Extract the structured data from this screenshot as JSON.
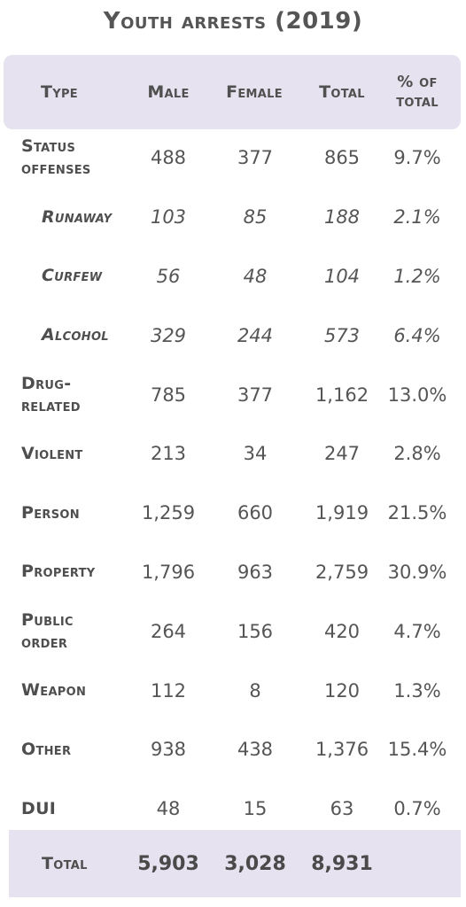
{
  "title": "Youth arrests (2019)",
  "columns": {
    "type": "Type",
    "male": "Male",
    "female": "Female",
    "total": "Total",
    "pct_line1": "% of",
    "pct_line2": "total"
  },
  "rows": [
    {
      "type_l1": "Status",
      "type_l2": "offenses",
      "male": "488",
      "female": "377",
      "total": "865",
      "pct": "9.7%"
    },
    {
      "type_l1": "Runaway",
      "type_l2": "",
      "male": "103",
      "female": "85",
      "total": "188",
      "pct": "2.1%"
    },
    {
      "type_l1": "Curfew",
      "type_l2": "",
      "male": "56",
      "female": "48",
      "total": "104",
      "pct": "1.2%"
    },
    {
      "type_l1": "Alcohol",
      "type_l2": "",
      "male": "329",
      "female": "244",
      "total": "573",
      "pct": "6.4%"
    },
    {
      "type_l1": "Drug-",
      "type_l2": "related",
      "male": "785",
      "female": "377",
      "total": "1,162",
      "pct": "13.0%"
    },
    {
      "type_l1": "Violent",
      "type_l2": "",
      "male": "213",
      "female": "34",
      "total": "247",
      "pct": "2.8%"
    },
    {
      "type_l1": "Person",
      "type_l2": "",
      "male": "1,259",
      "female": "660",
      "total": "1,919",
      "pct": "21.5%"
    },
    {
      "type_l1": "Property",
      "type_l2": "",
      "male": "1,796",
      "female": "963",
      "total": "2,759",
      "pct": "30.9%"
    },
    {
      "type_l1": "Public",
      "type_l2": "order",
      "male": "264",
      "female": "156",
      "total": "420",
      "pct": "4.7%"
    },
    {
      "type_l1": "Weapon",
      "type_l2": "",
      "male": "112",
      "female": "8",
      "total": "120",
      "pct": "1.3%"
    },
    {
      "type_l1": "Other",
      "type_l2": "",
      "male": "938",
      "female": "438",
      "total": "1,376",
      "pct": "15.4%"
    },
    {
      "type_l1": "DUI",
      "type_l2": "",
      "male": "48",
      "female": "15",
      "total": "63",
      "pct": "0.7%"
    }
  ],
  "totals": {
    "label": "Total",
    "male": "5,903",
    "female": "3,028",
    "total": "8,931"
  }
}
